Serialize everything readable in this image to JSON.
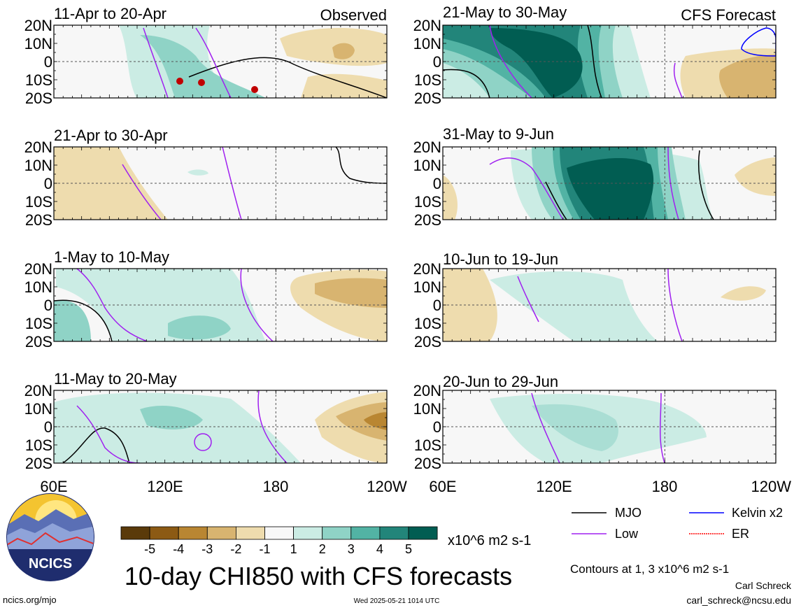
{
  "header": {
    "observed_label": "Observed",
    "forecast_label": "CFS Forecast"
  },
  "left_panels": [
    {
      "title": "11-Apr to 20-Apr"
    },
    {
      "title": "21-Apr to 30-Apr"
    },
    {
      "title": "1-May to 10-May"
    },
    {
      "title": "11-May to 20-May"
    }
  ],
  "right_panels": [
    {
      "title": "21-May to 30-May"
    },
    {
      "title": "31-May to 9-Jun"
    },
    {
      "title": "10-Jun to 19-Jun"
    },
    {
      "title": "20-Jun to 29-Jun"
    }
  ],
  "lat_labels": [
    "20N",
    "10N",
    "0",
    "10S",
    "20S"
  ],
  "lon_labels": [
    "60E",
    "120E",
    "180",
    "120W"
  ],
  "colorbar": {
    "ticks": [
      "-5",
      "-4",
      "-3",
      "-2",
      "-1",
      "1",
      "2",
      "3",
      "4",
      "5"
    ],
    "colors": [
      "#5a3a0a",
      "#8c5a14",
      "#b98632",
      "#d8b470",
      "#eedcae",
      "#f7f7f7",
      "#cbece4",
      "#8fd3c6",
      "#52b3a4",
      "#22857a",
      "#015d52"
    ],
    "units": "x10^6 m2 s-1"
  },
  "legend": {
    "items": [
      {
        "label": "MJO",
        "color": "#000000"
      },
      {
        "label": "Kelvin x2",
        "color": "#0000ff"
      },
      {
        "label": "Low",
        "color": "#a020f0"
      },
      {
        "label": "ER",
        "color": "#ff0000"
      }
    ],
    "contours_note": "Contours at 1, 3 x10^6 m2 s-1"
  },
  "main_title": "10-day CHI850 with CFS forecasts",
  "logo_text": "NCICS",
  "footer": {
    "url": "ncics.org/mjo",
    "timestamp": "Wed 2025-05-21 1014 UTC",
    "author": "Carl Schreck",
    "email": "carl_schreck@ncsu.edu"
  }
}
